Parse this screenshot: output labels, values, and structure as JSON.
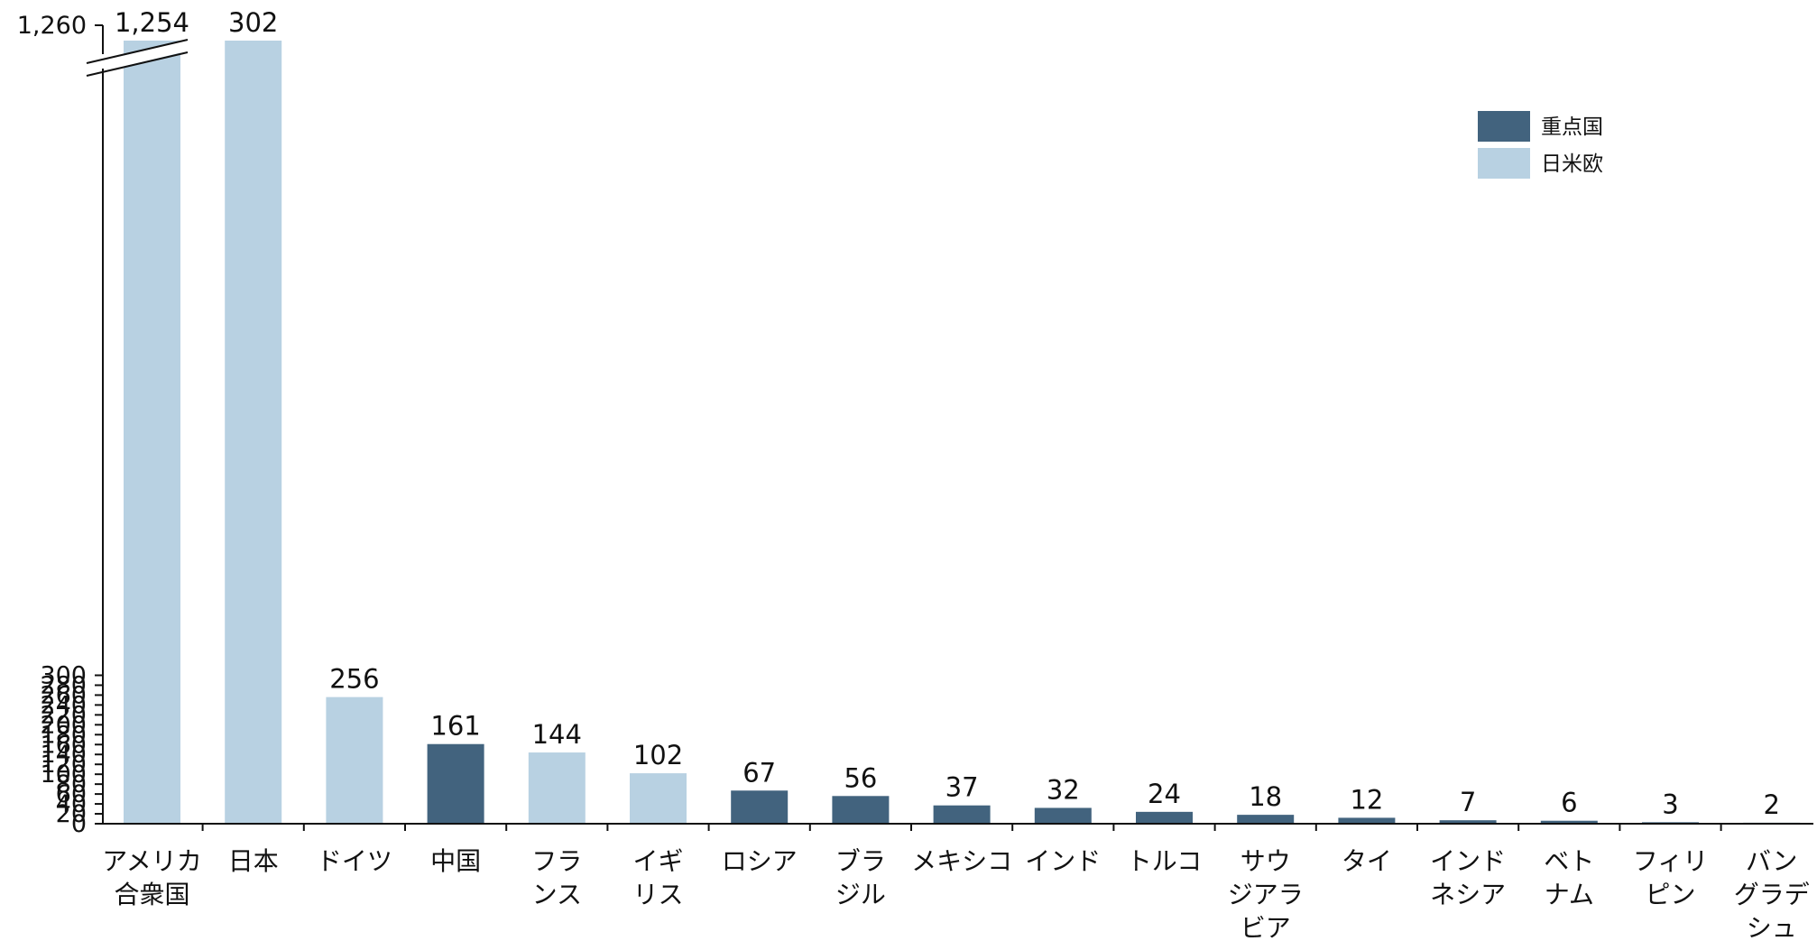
{
  "chart_data": {
    "type": "bar",
    "title": "",
    "xlabel": "",
    "ylabel": "",
    "ylim": [
      0,
      310
    ],
    "y_axis_break": {
      "below": 300,
      "top_tick": 1260
    },
    "y_ticks": [
      0,
      20,
      40,
      60,
      80,
      100,
      120,
      140,
      160,
      180,
      200,
      220,
      240,
      260,
      280,
      300
    ],
    "y_tick_labels": [
      "0",
      "20",
      "40",
      "60",
      "80",
      "100",
      "120",
      "140",
      "160",
      "180",
      "200",
      "220",
      "240",
      "260",
      "280",
      "300"
    ],
    "top_tick_label": "1,260",
    "legend_position": "top-right",
    "series": [
      {
        "name": "重点国",
        "color": "#42637e"
      },
      {
        "name": "日米欧",
        "color": "#b8d1e2"
      }
    ],
    "categories": [
      [
        "アメリカ",
        "合衆国"
      ],
      [
        "日本"
      ],
      [
        "ドイツ"
      ],
      [
        "中国"
      ],
      [
        "フラ",
        "ンス"
      ],
      [
        "イギ",
        "リス"
      ],
      [
        "ロシア"
      ],
      [
        "ブラ",
        "ジル"
      ],
      [
        "メキシコ"
      ],
      [
        "インド"
      ],
      [
        "トルコ"
      ],
      [
        "サウ",
        "ジアラ",
        "ビア"
      ],
      [
        "タイ"
      ],
      [
        "インド",
        "ネシア"
      ],
      [
        "ベト",
        "ナム"
      ],
      [
        "フィリ",
        "ピン"
      ],
      [
        "バン",
        "グラデ",
        "シュ"
      ]
    ],
    "values": [
      1254,
      302,
      256,
      161,
      144,
      102,
      67,
      56,
      37,
      32,
      24,
      18,
      12,
      7,
      6,
      3,
      2
    ],
    "value_labels": [
      "1,254",
      "302",
      "256",
      "161",
      "144",
      "102",
      "67",
      "56",
      "37",
      "32",
      "24",
      "18",
      "12",
      "7",
      "6",
      "3",
      "2"
    ],
    "series_index": [
      1,
      1,
      1,
      0,
      1,
      1,
      0,
      0,
      0,
      0,
      0,
      0,
      0,
      0,
      0,
      0,
      0
    ]
  }
}
